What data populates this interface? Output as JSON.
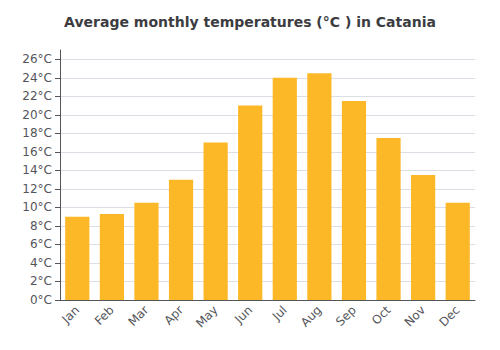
{
  "chart_data": {
    "type": "bar",
    "title": "Average monthly temperatures (°C ) in Catania",
    "categories": [
      "Jan",
      "Feb",
      "Mar",
      "Apr",
      "May",
      "Jun",
      "Jul",
      "Aug",
      "Sep",
      "Oct",
      "Nov",
      "Dec"
    ],
    "values": [
      9.0,
      9.3,
      10.5,
      13.0,
      17.0,
      21.0,
      24.0,
      24.5,
      21.5,
      17.5,
      13.5,
      10.5
    ],
    "color": "#FDB827",
    "ylim": [
      0,
      27
    ],
    "yticks": [
      {
        "value": 0,
        "label": "0°C"
      },
      {
        "value": 2,
        "label": "2°C"
      },
      {
        "value": 4,
        "label": "4°C"
      },
      {
        "value": 6,
        "label": "6°C"
      },
      {
        "value": 8,
        "label": "8°C"
      },
      {
        "value": 10,
        "label": "10°C"
      },
      {
        "value": 12,
        "label": "12°C"
      },
      {
        "value": 14,
        "label": "14°C"
      },
      {
        "value": 16,
        "label": "16°C"
      },
      {
        "value": 18,
        "label": "18°C"
      },
      {
        "value": 20,
        "label": "20°C"
      },
      {
        "value": 22,
        "label": "22°C"
      },
      {
        "value": 24,
        "label": "24°C"
      },
      {
        "value": 26,
        "label": "26°C"
      }
    ],
    "grid": true
  }
}
